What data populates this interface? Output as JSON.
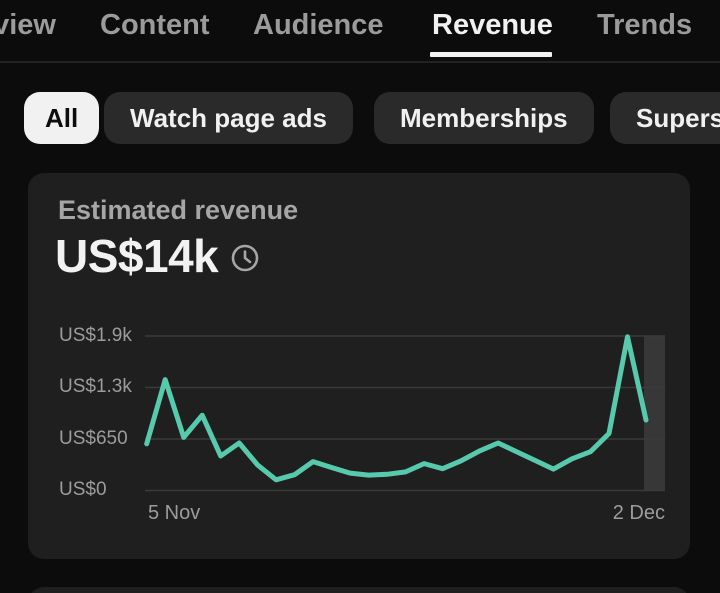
{
  "tabs": {
    "items": [
      {
        "label": "Overview",
        "visible_text": "view",
        "active": false
      },
      {
        "label": "Content",
        "active": false
      },
      {
        "label": "Audience",
        "active": false
      },
      {
        "label": "Revenue",
        "active": true
      },
      {
        "label": "Trends",
        "active": false
      }
    ]
  },
  "filters": {
    "chips": [
      {
        "label": "All",
        "selected": true
      },
      {
        "label": "Watch page ads",
        "selected": false
      },
      {
        "label": "Memberships",
        "selected": false
      },
      {
        "label": "Supers",
        "selected": false
      }
    ]
  },
  "card": {
    "title": "Estimated revenue",
    "value": "US$14k",
    "value_icon": "clock-icon"
  },
  "chart_data": {
    "type": "line",
    "title": "Estimated revenue",
    "x_axis": {
      "first_label": "5 Nov",
      "last_label": "2 Dec",
      "points": 28
    },
    "y_ticks": [
      {
        "label": "US$1.9k",
        "value": 1950
      },
      {
        "label": "US$1.3k",
        "value": 1300
      },
      {
        "label": "US$650",
        "value": 650
      },
      {
        "label": "US$0",
        "value": 0
      }
    ],
    "ylim": [
      0,
      1950
    ],
    "grid": true,
    "legend": "none",
    "line_color": "#57c9ad",
    "series": [
      {
        "name": "Estimated revenue (US$)",
        "values": [
          590,
          1400,
          670,
          950,
          435,
          600,
          320,
          135,
          200,
          365,
          290,
          220,
          195,
          205,
          235,
          340,
          275,
          375,
          500,
          600,
          490,
          380,
          270,
          400,
          490,
          720,
          1940,
          890
        ]
      }
    ],
    "highlight_band": {
      "position": "right-edge",
      "note": "lighter band over final day interval"
    }
  },
  "colors": {
    "page_bg": "#0c0c0c",
    "card_bg": "#1f1f1f",
    "chip_bg": "#2a2a2a",
    "chip_selected_bg": "#f1f1f1",
    "text_primary": "#f1f1f1",
    "text_secondary": "#9c9c9c",
    "gridline": "#3a3a3a",
    "highlight_band": "#373737",
    "line": "#57c9ad"
  }
}
